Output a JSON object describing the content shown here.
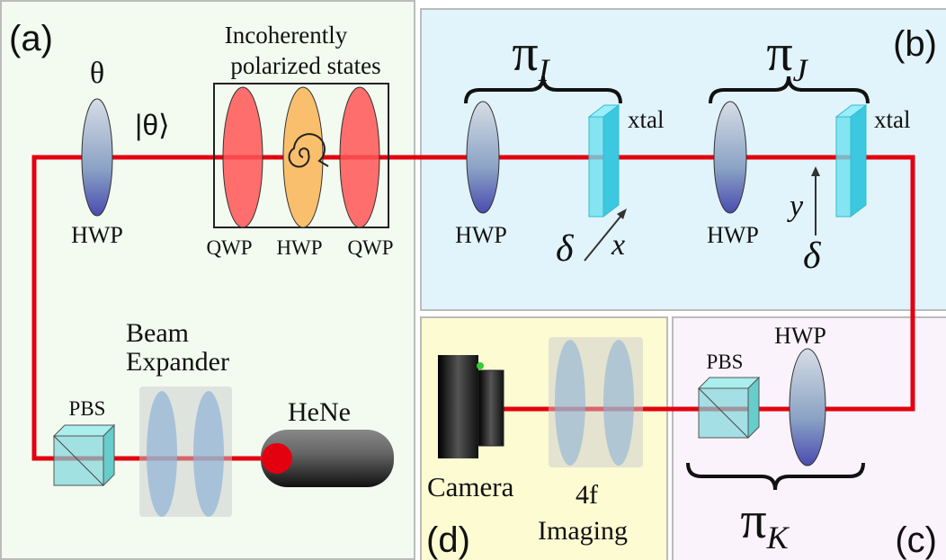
{
  "panels": {
    "a": {
      "label": "(a)",
      "theta": "θ",
      "ket": "|θ⟩",
      "hwp": "HWP",
      "box_title": [
        "Incoherently",
        "polarized states"
      ],
      "box_labels": [
        "QWP",
        "HWP",
        "QWP"
      ],
      "pbs": "PBS",
      "expander": [
        "Beam",
        "Expander"
      ],
      "laser": "HeNe"
    },
    "b": {
      "label": "(b)",
      "stage_i": {
        "symbol": "π",
        "sub": "I",
        "hwp": "HWP",
        "xtal": "xtal",
        "delta": "δ",
        "axis": "x"
      },
      "stage_j": {
        "symbol": "π",
        "sub": "J",
        "hwp": "HWP",
        "xtal": "xtal",
        "delta": "δ",
        "axis": "y"
      }
    },
    "c": {
      "label": "(c)",
      "pbs": "PBS",
      "hwp": "HWP",
      "symbol": "π",
      "sub": "K"
    },
    "d": {
      "label": "(d)",
      "camera": "Camera",
      "imaging": [
        "4f",
        "Imaging"
      ]
    }
  }
}
